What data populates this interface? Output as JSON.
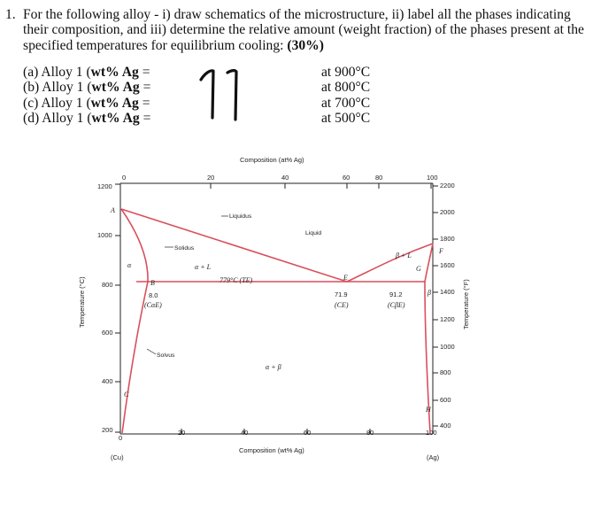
{
  "question": {
    "number": "1.",
    "text": "For the following alloy - i) draw schematics of the microstructure, ii) label all the phases indicating their composition, and iii) determine the relative amount (weight fraction) of the phases present at the specified temperatures for equilibrium cooling:",
    "points": "(30%)"
  },
  "alloys": [
    {
      "label_a": "(a) Alloy 1 (",
      "label_b": "wt% Ag",
      "label_c": " =",
      "temp": "at 900°C"
    },
    {
      "label_a": "(b) Alloy 1 (",
      "label_b": "wt% Ag",
      "label_c": " =",
      "temp": "at 800°C"
    },
    {
      "label_a": "(c) Alloy 1 (",
      "label_b": "wt% Ag",
      "label_c": " =",
      "temp": "at 700°C"
    },
    {
      "label_a": "(d) Alloy 1 (",
      "label_b": "wt% Ag",
      "label_c": " =",
      "temp": "at 500°C"
    }
  ],
  "handwritten_value": "11",
  "ink_color": "#111111",
  "phase_line_color": "#d94f5c",
  "diagram": {
    "top_axis_title": "Composition (at% Ag)",
    "top_ticks": [
      "0",
      "20",
      "40",
      "60",
      "80",
      "100"
    ],
    "bottom_axis_title": "Composition (wt% Ag)",
    "bottom_ticks": [
      "0",
      "20",
      "40",
      "60",
      "80",
      "100"
    ],
    "left_axis_title": "Temperature (°C)",
    "left_ticks": [
      "1200",
      "1000",
      "800",
      "600",
      "400",
      "200"
    ],
    "right_axis_title": "Temperature (°F)",
    "right_ticks": [
      "2200",
      "2000",
      "1800",
      "1600",
      "1400",
      "1200",
      "1000",
      "800",
      "600",
      "400"
    ],
    "left_end_label": "(Cu)",
    "right_end_label": "(Ag)",
    "labels": {
      "liquidus": "Liquidus",
      "liquid": "Liquid",
      "solidus": "Solidus",
      "solvus": "Solvus",
      "alpha": "α",
      "beta": "β",
      "alpha_L": "α + L",
      "beta_L": "β + L",
      "alpha_beta": "α + β",
      "eutectic_temp": "779°C (TE)",
      "point_A": "A",
      "point_B": "B",
      "point_C": "C",
      "point_E": "E",
      "point_F": "F",
      "point_G": "G",
      "point_H": "H",
      "ca_value": "8.0",
      "ca_label": "(CαE)",
      "ce_value": "71.9",
      "ce_label": "(CE)",
      "cb_value": "91.2",
      "cb_label": "(CβE)"
    }
  }
}
